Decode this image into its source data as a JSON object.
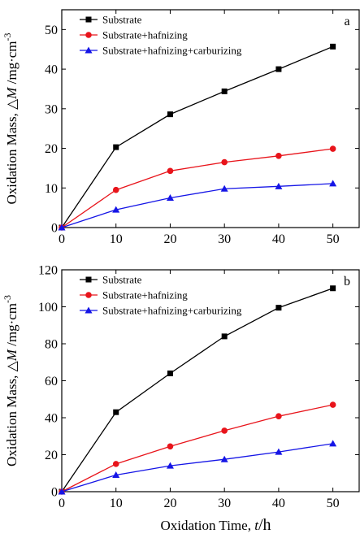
{
  "chart_data": [
    {
      "type": "line",
      "panel_label": "a",
      "x": [
        0,
        10,
        20,
        30,
        40,
        50
      ],
      "series": [
        {
          "name": "Substrate",
          "color": "#000000",
          "marker": "square",
          "values": [
            0,
            20.3,
            28.6,
            34.4,
            40.0,
            45.7
          ]
        },
        {
          "name": "Substrate+hafnizing",
          "color": "#e8141b",
          "marker": "circle",
          "values": [
            0,
            9.5,
            14.3,
            16.5,
            18.1,
            19.9
          ]
        },
        {
          "name": "Substrate+hafnizing+carburizing",
          "color": "#1515e6",
          "marker": "triangle",
          "values": [
            0,
            4.5,
            7.5,
            9.8,
            10.4,
            11.1
          ]
        }
      ],
      "xlim": [
        0,
        55
      ],
      "ylim": [
        0,
        55
      ],
      "xticks": [
        "0",
        "10",
        "20",
        "30",
        "40",
        "50"
      ],
      "yticks": [
        "0",
        "10",
        "20",
        "30",
        "40",
        "50"
      ],
      "ylabel_prefix": "Oxidation Mass,",
      "ylabel_delta": "△",
      "ylabel_var": "M",
      "ylabel_unit": "/mg·cm",
      "ylabel_exp": "-3",
      "legend_position": "top-left"
    },
    {
      "type": "line",
      "panel_label": "b",
      "x": [
        0,
        10,
        20,
        30,
        40,
        50
      ],
      "series": [
        {
          "name": "Substrate",
          "color": "#000000",
          "marker": "square",
          "values": [
            0,
            43,
            64,
            84,
            99.5,
            110
          ]
        },
        {
          "name": "Substrate+hafnizing",
          "color": "#e8141b",
          "marker": "circle",
          "values": [
            0,
            15,
            24.5,
            33,
            40.8,
            47
          ]
        },
        {
          "name": "Substrate+hafnizing+carburizing",
          "color": "#1515e6",
          "marker": "triangle",
          "values": [
            0,
            9,
            14,
            17.5,
            21.5,
            26
          ]
        }
      ],
      "xlim": [
        0,
        55
      ],
      "ylim": [
        0,
        120
      ],
      "xticks": [
        "0",
        "10",
        "20",
        "30",
        "40",
        "50"
      ],
      "yticks": [
        "0",
        "20",
        "40",
        "60",
        "80",
        "100",
        "120"
      ],
      "ylabel_prefix": "Oxidation Mass,",
      "ylabel_delta": "△",
      "ylabel_var": "M",
      "ylabel_unit": "/mg·cm",
      "ylabel_exp": "-3",
      "xlabel_prefix": "Oxidation Time,",
      "xlabel_var": "t",
      "xlabel_unit": "/h",
      "legend_position": "top-left"
    }
  ]
}
